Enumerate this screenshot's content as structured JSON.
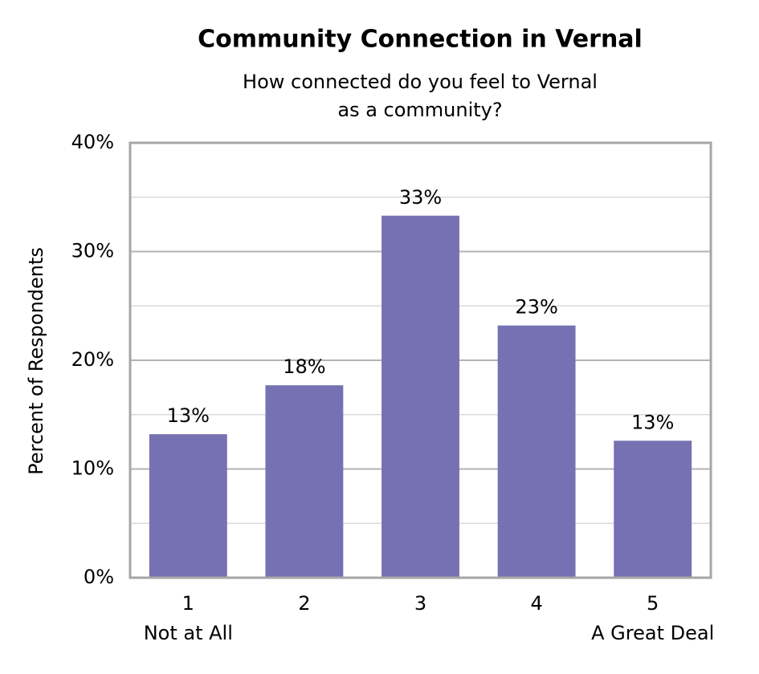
{
  "chart_data": {
    "type": "bar",
    "title": "Community Connection in Vernal",
    "subtitle": [
      "How connected do you feel to Vernal",
      "as a community?"
    ],
    "y_label": "Percent of Respondents",
    "categories": [
      "1",
      "2",
      "3",
      "4",
      "5"
    ],
    "category_notes": [
      "Not at All",
      "A Great Deal"
    ],
    "values": [
      13.2,
      17.7,
      33.3,
      23.2,
      12.6
    ],
    "value_labels": [
      "13%",
      "18%",
      "33%",
      "23%",
      "13%"
    ],
    "color": "#7671b2",
    "ylim": [
      0,
      40
    ],
    "yticks": [
      {
        "value": 0,
        "label": "0%"
      },
      {
        "value": 10,
        "label": "10%"
      },
      {
        "value": 20,
        "label": "20%"
      },
      {
        "value": 30,
        "label": "30%"
      },
      {
        "value": 40,
        "label": "40%"
      }
    ],
    "minor_yticks": [
      5,
      15,
      25,
      35
    ],
    "grid": true
  }
}
